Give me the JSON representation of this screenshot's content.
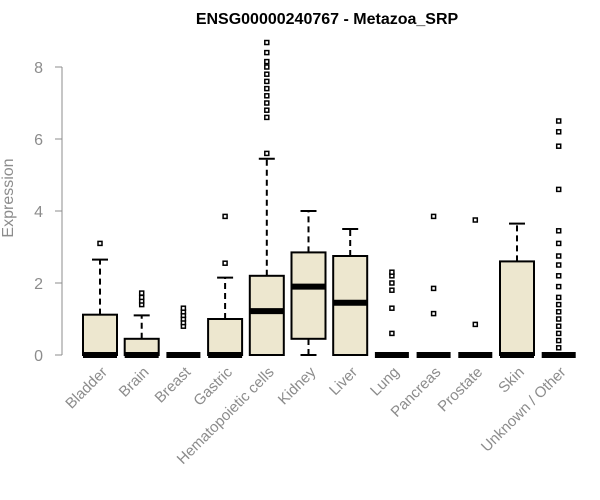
{
  "chart_data": {
    "type": "boxplot",
    "title": "ENSG00000240767 - Metazoa_SRP",
    "xlabel": "",
    "ylabel": "Expression",
    "ylim": [
      0,
      8.6
    ],
    "yticks": [
      0,
      2,
      4,
      6,
      8
    ],
    "box_fill": "#ede7cf",
    "categories": [
      "Bladder",
      "Brain",
      "Breast",
      "Gastric",
      "Hematopoietic cells",
      "Kidney",
      "Liver",
      "Lung",
      "Pancreas",
      "Prostate",
      "Skin",
      "Unknown / Other"
    ],
    "series": [
      {
        "name": "Bladder",
        "whisker_low": 0,
        "q1": 0,
        "median": 0,
        "q3": 1.12,
        "whisker_high": 2.65,
        "outliers": [
          3.1
        ]
      },
      {
        "name": "Brain",
        "whisker_low": 0,
        "q1": 0,
        "median": 0,
        "q3": 0.45,
        "whisker_high": 1.1,
        "outliers": [
          1.4,
          1.5,
          1.6,
          1.72
        ]
      },
      {
        "name": "Breast",
        "whisker_low": 0,
        "q1": 0,
        "median": 0,
        "q3": 0,
        "whisker_high": 0,
        "outliers": [
          0.8,
          0.9,
          1.0,
          1.1,
          1.2,
          1.3
        ]
      },
      {
        "name": "Gastric",
        "whisker_low": 0,
        "q1": 0,
        "median": 0,
        "q3": 1.0,
        "whisker_high": 2.15,
        "outliers": [
          2.55,
          3.85
        ]
      },
      {
        "name": "Hematopoietic cells",
        "whisker_low": 0,
        "q1": 0,
        "median": 1.22,
        "q3": 2.2,
        "whisker_high": 5.45,
        "outliers": [
          5.6,
          6.6,
          6.8,
          7.0,
          7.2,
          7.4,
          7.6,
          7.8,
          8.0,
          8.15,
          8.4,
          8.68
        ]
      },
      {
        "name": "Kidney",
        "whisker_low": 0,
        "q1": 0.45,
        "median": 1.9,
        "q3": 2.85,
        "whisker_high": 4.0,
        "outliers": []
      },
      {
        "name": "Liver",
        "whisker_low": 0,
        "q1": 0,
        "median": 1.45,
        "q3": 2.75,
        "whisker_high": 3.5,
        "outliers": []
      },
      {
        "name": "Lung",
        "whisker_low": 0,
        "q1": 0,
        "median": 0,
        "q3": 0,
        "whisker_high": 0,
        "outliers": [
          0.6,
          1.3,
          1.8,
          2.0,
          2.2,
          2.3
        ]
      },
      {
        "name": "Pancreas",
        "whisker_low": 0,
        "q1": 0,
        "median": 0,
        "q3": 0,
        "whisker_high": 0,
        "outliers": [
          1.15,
          1.85,
          3.85
        ]
      },
      {
        "name": "Prostate",
        "whisker_low": 0,
        "q1": 0,
        "median": 0,
        "q3": 0,
        "whisker_high": 0,
        "outliers": [
          0.85,
          3.75
        ]
      },
      {
        "name": "Skin",
        "whisker_low": 0,
        "q1": 0,
        "median": 0,
        "q3": 2.6,
        "whisker_high": 3.65,
        "outliers": []
      },
      {
        "name": "Unknown / Other",
        "whisker_low": 0,
        "q1": 0,
        "median": 0,
        "q3": 0,
        "whisker_high": 0,
        "outliers": [
          0.2,
          0.4,
          0.6,
          0.8,
          1.0,
          1.2,
          1.4,
          1.6,
          1.9,
          2.2,
          2.5,
          2.75,
          3.1,
          3.45,
          4.6,
          5.8,
          6.2,
          6.5
        ]
      }
    ]
  }
}
